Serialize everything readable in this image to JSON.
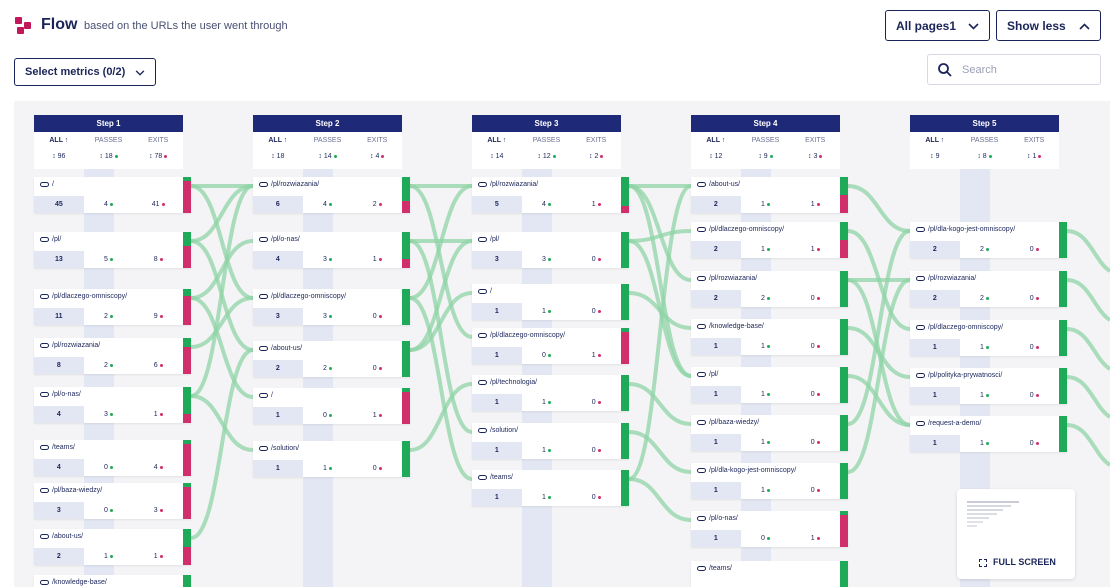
{
  "header": {
    "title": "Flow",
    "subtitle": "based on the URLs the user went through",
    "pages_button": "All pages1",
    "toggle_button": "Show less",
    "metrics_button": "Select metrics (0/2)",
    "search_placeholder": "Search"
  },
  "colors": {
    "navy": "#1e2a78",
    "passes": "#1faa59",
    "exits": "#d12e6c",
    "flow": "#8fd4a6"
  },
  "column_labels": {
    "all": "ALL ↑",
    "passes": "PASSES",
    "exits": "EXITS"
  },
  "steps": [
    {
      "label": "Step 1",
      "all": "↕ 96",
      "passes": "↕ 18",
      "exits": "↕ 78",
      "nodes": [
        {
          "url": "/",
          "all": "45",
          "passes": "4",
          "exits": "41"
        },
        {
          "url": "/pl/",
          "all": "13",
          "passes": "5",
          "exits": "8"
        },
        {
          "url": "/pl/dlaczego-omniscopy/",
          "all": "11",
          "passes": "2",
          "exits": "9"
        },
        {
          "url": "/pl/rozwiazania/",
          "all": "8",
          "passes": "2",
          "exits": "6"
        },
        {
          "url": "/pl/o-nas/",
          "all": "4",
          "passes": "3",
          "exits": "1"
        },
        {
          "url": "/teams/",
          "all": "4",
          "passes": "0",
          "exits": "4"
        },
        {
          "url": "/pl/baza-wiedzy/",
          "all": "3",
          "passes": "0",
          "exits": "3"
        },
        {
          "url": "/about-us/",
          "all": "2",
          "passes": "1",
          "exits": "1"
        },
        {
          "url": "/knowledge-base/",
          "all": "",
          "passes": "",
          "exits": ""
        }
      ]
    },
    {
      "label": "Step 2",
      "all": "↕ 18",
      "passes": "↕ 14",
      "exits": "↕ 4",
      "nodes": [
        {
          "url": "/pl/rozwiazania/",
          "all": "6",
          "passes": "4",
          "exits": "2"
        },
        {
          "url": "/pl/o-nas/",
          "all": "4",
          "passes": "3",
          "exits": "1"
        },
        {
          "url": "/pl/dlaczego-omniscopy/",
          "all": "3",
          "passes": "3",
          "exits": "0"
        },
        {
          "url": "/about-us/",
          "all": "2",
          "passes": "2",
          "exits": "0"
        },
        {
          "url": "/",
          "all": "1",
          "passes": "0",
          "exits": "1"
        },
        {
          "url": "/solution/",
          "all": "1",
          "passes": "1",
          "exits": "0"
        }
      ]
    },
    {
      "label": "Step 3",
      "all": "↕ 14",
      "passes": "↕ 12",
      "exits": "↕ 2",
      "nodes": [
        {
          "url": "/pl/rozwiazania/",
          "all": "5",
          "passes": "4",
          "exits": "1"
        },
        {
          "url": "/pl/",
          "all": "3",
          "passes": "3",
          "exits": "0"
        },
        {
          "url": "/",
          "all": "1",
          "passes": "1",
          "exits": "0"
        },
        {
          "url": "/pl/dlaczego-omniscopy/",
          "all": "1",
          "passes": "0",
          "exits": "1"
        },
        {
          "url": "/pl/technologia/",
          "all": "1",
          "passes": "1",
          "exits": "0"
        },
        {
          "url": "/solution/",
          "all": "1",
          "passes": "1",
          "exits": "0"
        },
        {
          "url": "/teams/",
          "all": "1",
          "passes": "1",
          "exits": "0"
        }
      ]
    },
    {
      "label": "Step 4",
      "all": "↕ 12",
      "passes": "↕ 9",
      "exits": "↕ 3",
      "nodes": [
        {
          "url": "/about-us/",
          "all": "2",
          "passes": "1",
          "exits": "1"
        },
        {
          "url": "/pl/dlaczego-omniscopy/",
          "all": "2",
          "passes": "1",
          "exits": "1"
        },
        {
          "url": "/pl/rozwiazania/",
          "all": "2",
          "passes": "2",
          "exits": "0"
        },
        {
          "url": "/knowledge-base/",
          "all": "1",
          "passes": "1",
          "exits": "0"
        },
        {
          "url": "/pl/",
          "all": "1",
          "passes": "1",
          "exits": "0"
        },
        {
          "url": "/pl/baza-wiedzy/",
          "all": "1",
          "passes": "1",
          "exits": "0"
        },
        {
          "url": "/pl/dla-kogo-jest-omniscopy/",
          "all": "1",
          "passes": "1",
          "exits": "0"
        },
        {
          "url": "/pl/o-nas/",
          "all": "1",
          "passes": "0",
          "exits": "1"
        },
        {
          "url": "/teams/",
          "all": "",
          "passes": "",
          "exits": ""
        }
      ]
    },
    {
      "label": "Step 5",
      "all": "↕ 9",
      "passes": "↕ 8",
      "exits": "↕ 1",
      "nodes": [
        {
          "url": "/pl/dla-kogo-jest-omniscopy/",
          "all": "2",
          "passes": "2",
          "exits": "0"
        },
        {
          "url": "/pl/rozwiazania/",
          "all": "2",
          "passes": "2",
          "exits": "0"
        },
        {
          "url": "/pl/dlaczego-omniscopy/",
          "all": "1",
          "passes": "1",
          "exits": "0"
        },
        {
          "url": "/pl/polityka-prywatnosci/",
          "all": "1",
          "passes": "1",
          "exits": "0"
        },
        {
          "url": "/request-a-demo/",
          "all": "1",
          "passes": "1",
          "exits": "0"
        }
      ]
    }
  ],
  "minimap": {
    "fullscreen_label": "FULL SCREEN"
  }
}
